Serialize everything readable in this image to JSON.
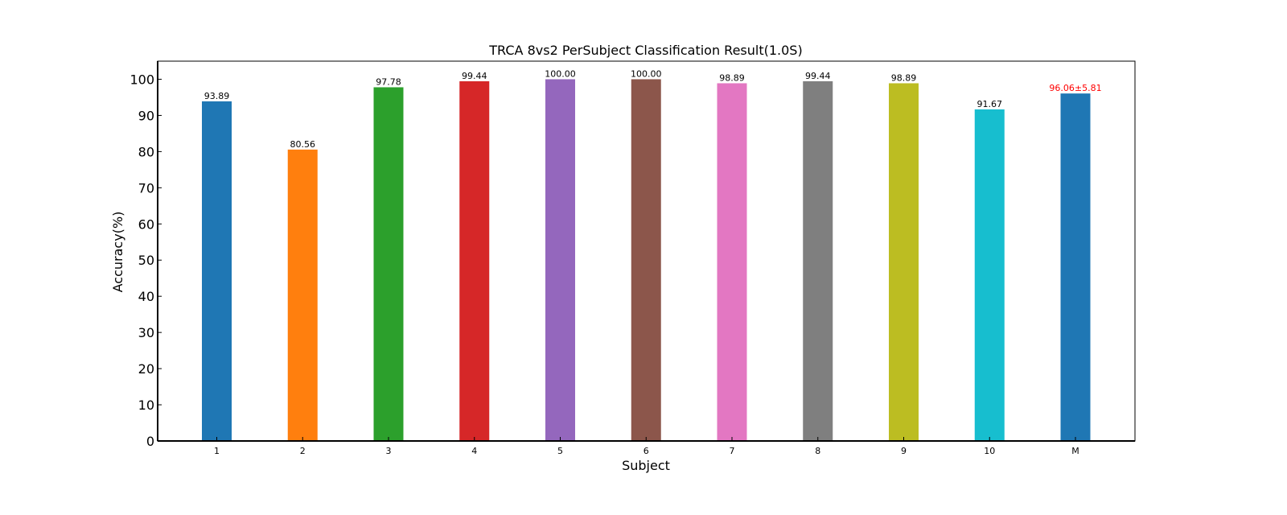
{
  "chart_data": {
    "type": "bar",
    "title": "TRCA 8vs2 PerSubject Classification Result(1.0S)",
    "xlabel": "Subject",
    "ylabel": "Accuracy(%)",
    "categories": [
      "1",
      "2",
      "3",
      "4",
      "5",
      "6",
      "7",
      "8",
      "9",
      "10",
      "M"
    ],
    "values": [
      93.89,
      80.56,
      97.78,
      99.44,
      100.0,
      100.0,
      98.89,
      99.44,
      98.89,
      91.67,
      96.06
    ],
    "value_labels": [
      "93.89",
      "80.56",
      "97.78",
      "99.44",
      "100.00",
      "100.00",
      "98.89",
      "99.44",
      "98.89",
      "91.67",
      "96.06±5.81"
    ],
    "colors": [
      "#1f77b4",
      "#ff7f0e",
      "#2ca02c",
      "#d62728",
      "#9467bd",
      "#8c564b",
      "#e377c2",
      "#7f7f7f",
      "#bcbd22",
      "#17becf",
      "#1f77b4"
    ],
    "value_label_colors": [
      "#000000",
      "#000000",
      "#000000",
      "#000000",
      "#000000",
      "#000000",
      "#000000",
      "#000000",
      "#000000",
      "#000000",
      "#ff0000"
    ],
    "ylim": [
      0,
      105
    ],
    "yticks": [
      0,
      10,
      20,
      30,
      40,
      50,
      60,
      70,
      80,
      90,
      100
    ],
    "grid": false,
    "legend": "none"
  }
}
